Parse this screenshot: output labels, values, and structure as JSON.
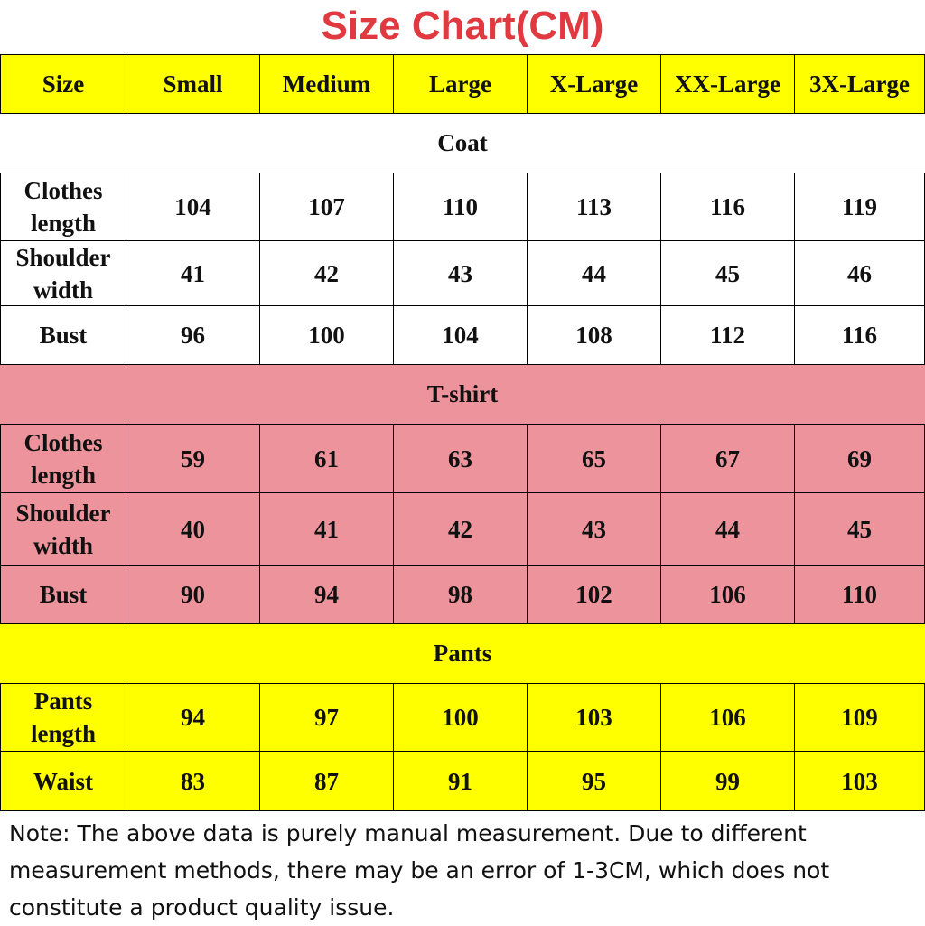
{
  "header": {
    "title": "Size Chart(CM)"
  },
  "table": {
    "columns": [
      "Size",
      "Small",
      "Medium",
      "Large",
      "X-Large",
      "XX-Large",
      "3X-Large"
    ],
    "sections": [
      {
        "title": "Coat",
        "color": "#ffffff",
        "rows": [
          {
            "label": "Clothes length",
            "values": [
              104,
              107,
              110,
              113,
              116,
              119
            ]
          },
          {
            "label": "Shoulder width",
            "values": [
              41,
              42,
              43,
              44,
              45,
              46
            ]
          },
          {
            "label": "Bust",
            "values": [
              96,
              100,
              104,
              108,
              112,
              116
            ]
          }
        ]
      },
      {
        "title": "T-shirt",
        "color": "#ec939b",
        "rows": [
          {
            "label": "Clothes length",
            "values": [
              59,
              61,
              63,
              65,
              67,
              69
            ]
          },
          {
            "label": "Shoulder width",
            "values": [
              40,
              41,
              42,
              43,
              44,
              45
            ]
          },
          {
            "label": "Bust",
            "values": [
              90,
              94,
              98,
              102,
              106,
              110
            ]
          }
        ]
      },
      {
        "title": "Pants",
        "color": "#ffff00",
        "rows": [
          {
            "label": "Pants length",
            "values": [
              94,
              97,
              100,
              103,
              106,
              109
            ]
          },
          {
            "label": "Waist",
            "values": [
              83,
              87,
              91,
              95,
              99,
              103
            ]
          }
        ]
      }
    ]
  },
  "note": "Note: The above data is purely manual measurement. Due to different measurement methods, there may be an error of 1-3CM, which does not constitute a product quality issue."
}
